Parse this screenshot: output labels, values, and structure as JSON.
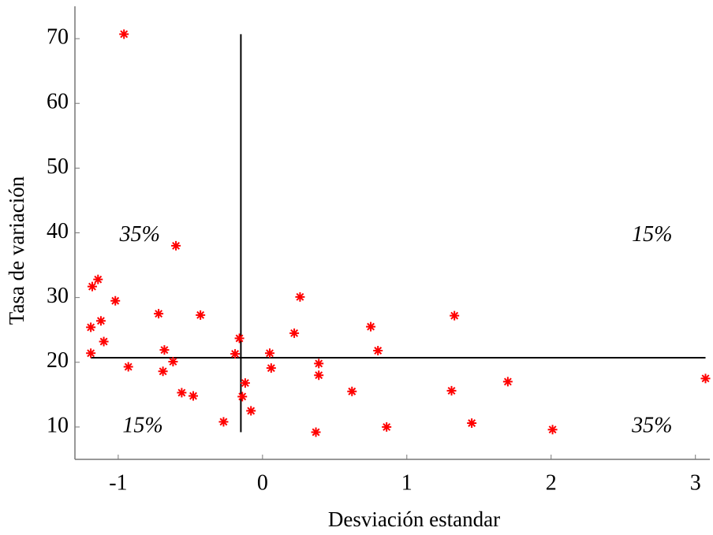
{
  "chart_data": {
    "type": "scatter",
    "x_label": "Desviación estandar",
    "y_label": "Tasa de variación",
    "xlim": [
      -1.3,
      3.1
    ],
    "xticks": [
      -1,
      0,
      1,
      2,
      3
    ],
    "ylim": [
      5,
      75
    ],
    "yticks": [
      10,
      20,
      30,
      40,
      50,
      60,
      70
    ],
    "series": [
      {
        "color": "#ff0000",
        "x": [
          -0.96,
          -0.6,
          -1.14,
          -1.18,
          -1.02,
          -0.72,
          -0.43,
          0.26,
          -1.12,
          -1.19,
          -1.1,
          -1.19,
          -0.68,
          -0.62,
          -0.93,
          -0.69,
          -0.56,
          -0.48,
          -0.27,
          -0.16,
          -0.19,
          -0.12,
          -0.14,
          -0.08,
          0.05,
          0.06,
          0.22,
          0.39,
          0.39,
          0.37,
          0.62,
          0.75,
          0.8,
          0.86,
          1.33,
          1.31,
          1.45,
          1.7,
          2.01,
          3.07
        ],
        "y": [
          70.7,
          38.0,
          32.8,
          31.7,
          29.5,
          27.5,
          27.3,
          30.1,
          26.4,
          25.4,
          23.2,
          21.4,
          21.9,
          20.1,
          19.3,
          18.6,
          15.3,
          14.8,
          10.8,
          23.7,
          21.3,
          16.8,
          14.7,
          12.5,
          21.4,
          19.1,
          24.5,
          19.8,
          18.0,
          9.2,
          15.5,
          25.5,
          21.8,
          10.0,
          27.2,
          15.6,
          10.6,
          17.0,
          9.6,
          17.5
        ]
      }
    ],
    "reference_lines": [
      {
        "color": "#000000",
        "x": [
          -0.15,
          -0.15
        ],
        "y": [
          9.2,
          70.7
        ]
      },
      {
        "color": "#000000",
        "x": [
          -1.19,
          3.07
        ],
        "y": [
          20.7,
          20.7
        ]
      }
    ],
    "annotations": [
      {
        "text": "35%",
        "x": -0.85,
        "y": 39.5
      },
      {
        "text": "15%",
        "x": 2.7,
        "y": 39.5
      },
      {
        "text": "15%",
        "x": -0.83,
        "y": 10
      },
      {
        "text": "35%",
        "x": 2.7,
        "y": 10
      }
    ]
  }
}
